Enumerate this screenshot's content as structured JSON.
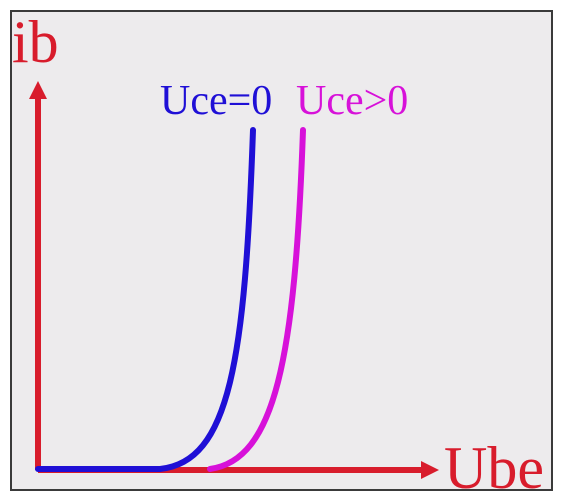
{
  "chart_data": {
    "type": "line",
    "title": "",
    "xlabel": "Ube",
    "ylabel": "ib",
    "grid": false,
    "legend": "inline-top",
    "colors": {
      "axis": "#d81c2c",
      "frame_bg": "#edebed"
    },
    "series": [
      {
        "name": "Uce=0",
        "color": "#1f0fd6"
      },
      {
        "name": "Uce>0",
        "color": "#d711d9"
      }
    ]
  }
}
